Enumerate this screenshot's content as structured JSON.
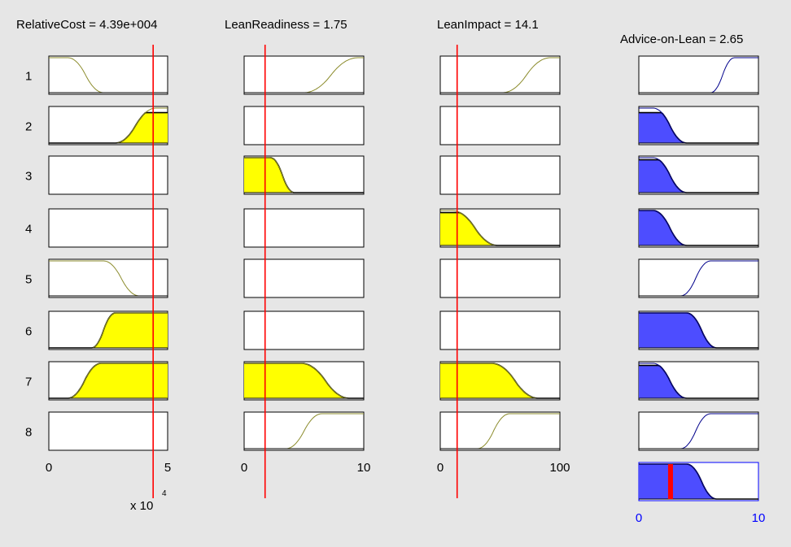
{
  "window": {
    "background": "#e6e6e6"
  },
  "colors": {
    "antecedent_fill": "#ffff00",
    "antecedent_line": "#8b8b2b",
    "consequent_fill": "#4d4dff",
    "consequent_line": "#00008b",
    "indicator": "#ff0000",
    "output_axis": "#0000ff"
  },
  "rule_labels": [
    "1",
    "2",
    "3",
    "4",
    "5",
    "6",
    "7",
    "8"
  ],
  "variables": [
    {
      "id": "relativecost",
      "label": "RelativeCost = 4.39e+004",
      "range": [
        0,
        5
      ],
      "ticks": [
        "0",
        "5"
      ],
      "exponent_label": "x 10",
      "exponent_sup": "4",
      "current_value": 4.39,
      "rules": [
        {
          "mf": "zmf",
          "params": [
            0.8,
            2.3
          ],
          "height": 0
        },
        {
          "mf": "smf",
          "params": [
            2.8,
            4.5
          ],
          "height": 0.87
        },
        {
          "mf": "none"
        },
        {
          "mf": "none"
        },
        {
          "mf": "zmf",
          "params": [
            2.3,
            3.8
          ],
          "height": 0
        },
        {
          "mf": "smf",
          "params": [
            1.8,
            2.8
          ],
          "height": 1.0
        },
        {
          "mf": "smf",
          "params": [
            0.8,
            2.2
          ],
          "height": 1.0
        },
        {
          "mf": "none"
        }
      ]
    },
    {
      "id": "leanreadiness",
      "label": "LeanReadiness = 1.75",
      "range": [
        0,
        10
      ],
      "ticks": [
        "0",
        "10"
      ],
      "current_value": 1.75,
      "rules": [
        {
          "mf": "smf",
          "params": [
            5,
            9.5
          ],
          "height": 0
        },
        {
          "mf": "none"
        },
        {
          "mf": "zmf",
          "params": [
            2.2,
            4.2
          ],
          "height": 1.0
        },
        {
          "mf": "none"
        },
        {
          "mf": "none"
        },
        {
          "mf": "none"
        },
        {
          "mf": "zmf",
          "params": [
            4.8,
            8.8
          ],
          "height": 1.0
        },
        {
          "mf": "smf",
          "params": [
            3.5,
            6.5
          ],
          "height": 0
        }
      ]
    },
    {
      "id": "leanimpact",
      "label": "LeanImpact = 14.1",
      "range": [
        0,
        100
      ],
      "ticks": [
        "0",
        "100"
      ],
      "current_value": 14.1,
      "rules": [
        {
          "mf": "smf",
          "params": [
            52,
            92
          ],
          "height": 0
        },
        {
          "mf": "none"
        },
        {
          "mf": "none"
        },
        {
          "mf": "zmf",
          "params": [
            10,
            48
          ],
          "height": 0.94
        },
        {
          "mf": "none"
        },
        {
          "mf": "none"
        },
        {
          "mf": "zmf",
          "params": [
            43,
            82
          ],
          "height": 1.0
        },
        {
          "mf": "smf",
          "params": [
            31,
            58
          ],
          "height": 0
        }
      ]
    },
    {
      "id": "advice",
      "label": "Advice-on-Lean = 2.65",
      "range": [
        0,
        10
      ],
      "ticks": [
        "0",
        "10"
      ],
      "current_value": 2.65,
      "rules": [
        {
          "mf": "smf",
          "params": [
            6,
            8
          ],
          "height": 0
        },
        {
          "mf": "zmf",
          "params": [
            1.2,
            4
          ],
          "height": 0.87
        },
        {
          "mf": "zmf",
          "params": [
            1.2,
            4
          ],
          "height": 0.94
        },
        {
          "mf": "zmf",
          "params": [
            1.2,
            4
          ],
          "height": 1.0
        },
        {
          "mf": "smf",
          "params": [
            3.5,
            6
          ],
          "height": 0
        },
        {
          "mf": "zmf",
          "params": [
            4,
            6.5
          ],
          "height": 1.0
        },
        {
          "mf": "zmf",
          "params": [
            1.2,
            4
          ],
          "height": 0.94
        },
        {
          "mf": "smf",
          "params": [
            3.5,
            6
          ],
          "height": 0
        }
      ],
      "aggregate": {
        "mf": "zmf",
        "params": [
          4,
          6.5
        ],
        "height": 1.0
      }
    }
  ]
}
